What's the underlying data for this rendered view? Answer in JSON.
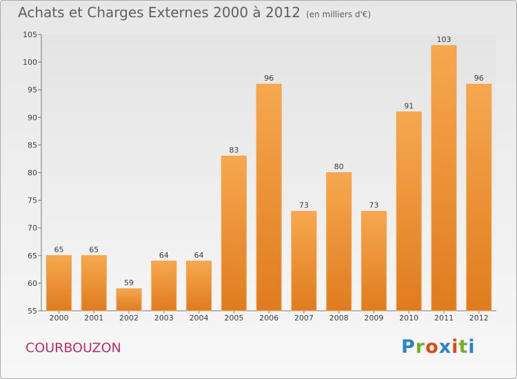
{
  "header": {
    "title": "Achats et Charges Externes 2000 à 2012",
    "subtitle": "(en milliers d'€)"
  },
  "footer": {
    "city": "COURBOUZON",
    "brand_letters": [
      "P",
      "r",
      "o",
      "x",
      "i",
      "t",
      "i"
    ]
  },
  "colors": {
    "bar_light": "#f6a84f",
    "bar_dark": "#e07b1f",
    "brand": [
      "#2c82c9",
      "#71b32a",
      "#e2471c",
      "#2c82c9",
      "#e2471c",
      "#71b32a",
      "#2c82c9"
    ]
  },
  "chart_data": {
    "type": "bar",
    "title": "Achats et Charges Externes 2000 à 2012",
    "ylabel": "en milliers d'€",
    "categories": [
      "2000",
      "2001",
      "2002",
      "2003",
      "2004",
      "2005",
      "2006",
      "2007",
      "2008",
      "2009",
      "2010",
      "2011",
      "2012"
    ],
    "values": [
      65,
      65,
      59,
      64,
      64,
      83,
      96,
      73,
      80,
      73,
      91,
      103,
      96
    ],
    "ylim": [
      55,
      105
    ],
    "yticks": [
      55,
      60,
      65,
      70,
      75,
      80,
      85,
      90,
      95,
      100,
      105
    ],
    "grid": false
  }
}
